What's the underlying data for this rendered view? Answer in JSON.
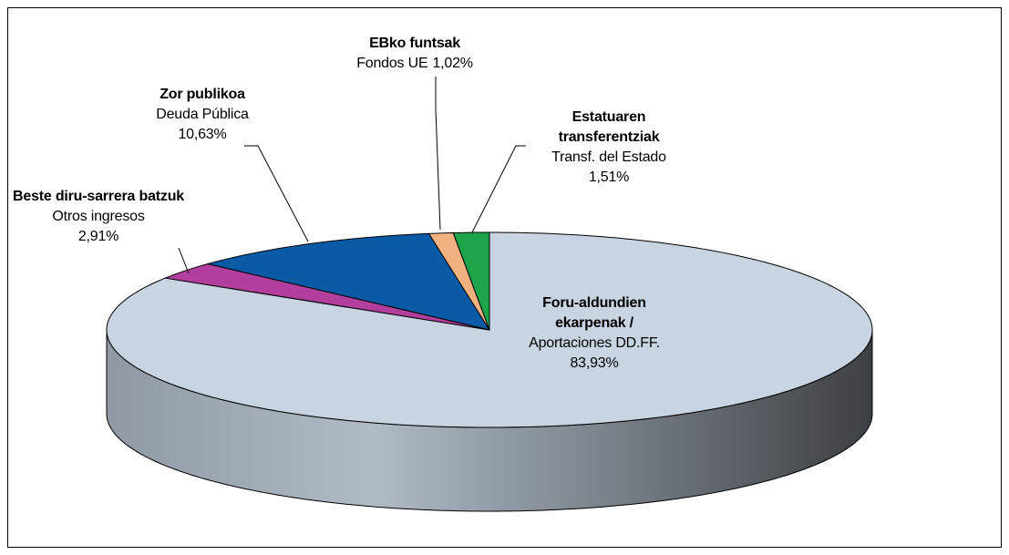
{
  "chart_data": {
    "type": "pie",
    "categories": [
      "Foru-aldundien ekarpenak /",
      "Beste diru-sarrera batzuk",
      "Zor publikoa",
      "EBko funtsak",
      "Estatuaren transferentziak"
    ],
    "categories_es": [
      "Aportaciones DD.FF.",
      "Otros ingresos",
      "Deuda Pública",
      "Fondos UE",
      "Transf. del Estado"
    ],
    "values": [
      83.93,
      2.91,
      10.63,
      1.02,
      1.51
    ],
    "value_labels": [
      "83,93%",
      "2,91%",
      "10,63%",
      "1,02%",
      "1,51%"
    ],
    "colors": [
      "#c8d4e2",
      "#b23e9e",
      "#0b5aa6",
      "#f0b080",
      "#1ea54a"
    ]
  }
}
